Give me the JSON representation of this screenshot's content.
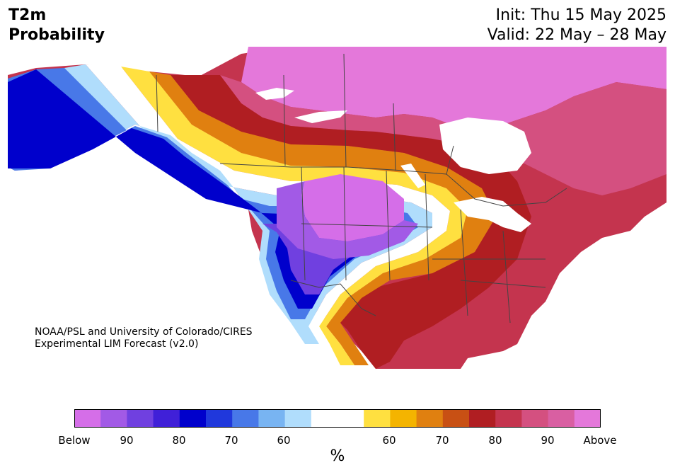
{
  "title": {
    "left_line1": "T2m",
    "left_line2": "Probability",
    "init": "Init: Thu 15 May 2025",
    "valid": "Valid: 22 May – 28 May"
  },
  "credit": {
    "line1": "NOAA/PSL and University of Colorado/CIRES",
    "line2": "Experimental LIM Forecast (v2.0)"
  },
  "colorbar": {
    "below_colors": [
      "#d56ee8",
      "#a25ae6",
      "#7040e0",
      "#4020d8",
      "#0000cc",
      "#2038dc",
      "#4878e8",
      "#78b4f2",
      "#b0ddfc"
    ],
    "neutral_color": "#ffffff",
    "above_colors": [
      "#ffe040",
      "#f4b400",
      "#e08010",
      "#c85014",
      "#b01e22",
      "#c4344e",
      "#d45080",
      "#d95fa2",
      "#e478da"
    ],
    "tick_labels": [
      "Below",
      "90",
      "80",
      "70",
      "60",
      "60",
      "70",
      "80",
      "90",
      "Above"
    ],
    "unit": "%"
  }
}
